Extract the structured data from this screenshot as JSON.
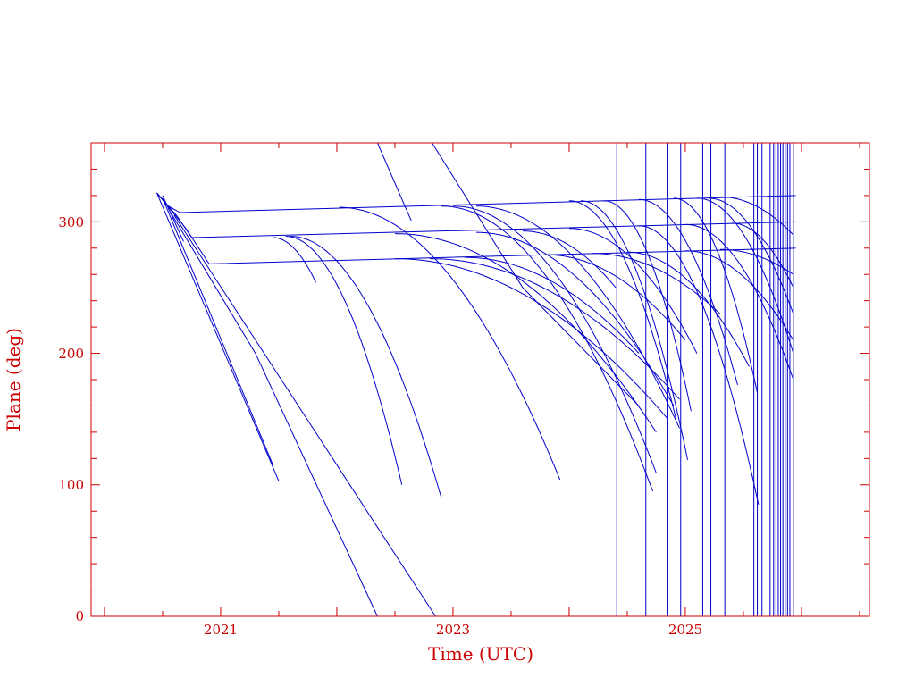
{
  "chart_data": {
    "type": "line",
    "title": "",
    "xlabel": "Time (UTC)",
    "ylabel": "Plane (deg)",
    "xlim": [
      2019.885,
      2026.585
    ],
    "ylim": [
      0,
      360
    ],
    "x_ticks": [
      {
        "value": 2021,
        "label": "2021"
      },
      {
        "value": 2023,
        "label": "2023"
      },
      {
        "value": 2025,
        "label": "2025"
      }
    ],
    "x_minor_step": 0.5,
    "y_ticks": [
      {
        "value": 0,
        "label": "0"
      },
      {
        "value": 100,
        "label": "100"
      },
      {
        "value": 200,
        "label": "200"
      },
      {
        "value": 300,
        "label": "300"
      }
    ],
    "y_minor_step": 20,
    "grid": false,
    "colors": {
      "axis": "#cc0000",
      "series": "#0000cc"
    },
    "trajectories": [
      {
        "shape": "linear",
        "points": [
          [
            2020.45,
            322
          ],
          [
            2020.55,
            312
          ],
          [
            2020.65,
            307
          ],
          [
            2025.95,
            320
          ]
        ]
      },
      {
        "shape": "linear",
        "points": [
          [
            2020.45,
            322
          ],
          [
            2020.62,
            305
          ],
          [
            2020.75,
            288
          ],
          [
            2025.95,
            300
          ]
        ]
      },
      {
        "shape": "linear",
        "points": [
          [
            2020.45,
            322
          ],
          [
            2020.7,
            295
          ],
          [
            2020.9,
            268
          ],
          [
            2025.95,
            280
          ]
        ]
      },
      {
        "shape": "linear",
        "points": [
          [
            2020.45,
            322
          ],
          [
            2021.5,
            103
          ]
        ]
      },
      {
        "shape": "linear",
        "points": [
          [
            2020.5,
            318
          ],
          [
            2021.45,
            115
          ]
        ]
      },
      {
        "shape": "linear",
        "points": [
          [
            2020.5,
            320
          ],
          [
            2020.68,
            285
          ]
        ]
      },
      {
        "shape": "linear",
        "points": [
          [
            2020.55,
            310
          ],
          [
            2021.3,
            200
          ],
          [
            2022.35,
            0
          ]
        ]
      },
      {
        "shape": "linear",
        "points": [
          [
            2020.6,
            305
          ],
          [
            2022.85,
            0
          ]
        ]
      },
      {
        "shape": "linear",
        "points": [
          [
            2022.35,
            360
          ],
          [
            2022.64,
            301
          ]
        ]
      },
      {
        "shape": "linear",
        "points": [
          [
            2022.82,
            360
          ],
          [
            2023.6,
            250
          ],
          [
            2024.6,
            160
          ]
        ]
      },
      {
        "shape": "decay",
        "points": [
          [
            2021.45,
            288
          ],
          [
            2021.82,
            254
          ]
        ]
      },
      {
        "shape": "decay",
        "points": [
          [
            2021.56,
            289
          ],
          [
            2022.56,
            100
          ]
        ]
      },
      {
        "shape": "decay",
        "points": [
          [
            2021.6,
            289
          ],
          [
            2022.9,
            90
          ]
        ]
      },
      {
        "shape": "decay",
        "points": [
          [
            2022.02,
            311
          ],
          [
            2023.92,
            104
          ]
        ]
      },
      {
        "shape": "decay",
        "points": [
          [
            2022.9,
            312
          ],
          [
            2024.72,
            95
          ]
        ]
      },
      {
        "shape": "decay",
        "points": [
          [
            2023.0,
            312
          ],
          [
            2024.75,
            109
          ]
        ]
      },
      {
        "shape": "decay",
        "points": [
          [
            2023.2,
            312
          ],
          [
            2024.95,
            143
          ]
        ]
      },
      {
        "shape": "decay",
        "points": [
          [
            2024.0,
            316
          ],
          [
            2024.92,
            150
          ]
        ]
      },
      {
        "shape": "decay",
        "points": [
          [
            2024.1,
            316
          ],
          [
            2025.02,
            119
          ]
        ]
      },
      {
        "shape": "decay",
        "points": [
          [
            2024.3,
            316
          ],
          [
            2025.05,
            156
          ]
        ]
      },
      {
        "shape": "decay",
        "points": [
          [
            2024.6,
            317
          ],
          [
            2025.45,
            176
          ]
        ]
      },
      {
        "shape": "decay",
        "points": [
          [
            2024.9,
            318
          ],
          [
            2025.62,
            170
          ]
        ]
      },
      {
        "shape": "decay",
        "points": [
          [
            2025.1,
            318
          ],
          [
            2025.93,
            200
          ]
        ]
      },
      {
        "shape": "decay",
        "points": [
          [
            2025.2,
            318
          ],
          [
            2025.93,
            230
          ]
        ]
      },
      {
        "shape": "decay",
        "points": [
          [
            2025.3,
            319
          ],
          [
            2025.93,
            290
          ]
        ]
      },
      {
        "shape": "decay",
        "points": [
          [
            2022.5,
            291
          ],
          [
            2024.75,
            140
          ]
        ]
      },
      {
        "shape": "decay",
        "points": [
          [
            2023.2,
            292
          ],
          [
            2024.9,
            160
          ]
        ]
      },
      {
        "shape": "decay",
        "points": [
          [
            2023.6,
            293
          ],
          [
            2024.4,
            250
          ]
        ]
      },
      {
        "shape": "decay",
        "points": [
          [
            2024.0,
            295
          ],
          [
            2025.1,
            200
          ]
        ]
      },
      {
        "shape": "decay",
        "points": [
          [
            2024.6,
            297
          ],
          [
            2025.63,
            85
          ]
        ]
      },
      {
        "shape": "decay",
        "points": [
          [
            2025.0,
            298
          ],
          [
            2025.93,
            180
          ]
        ]
      },
      {
        "shape": "decay",
        "points": [
          [
            2025.4,
            299
          ],
          [
            2025.93,
            250
          ]
        ]
      },
      {
        "shape": "decay",
        "points": [
          [
            2022.5,
            272
          ],
          [
            2024.85,
            150
          ]
        ]
      },
      {
        "shape": "decay",
        "points": [
          [
            2022.8,
            272
          ],
          [
            2024.95,
            165
          ]
        ]
      },
      {
        "shape": "decay",
        "points": [
          [
            2023.1,
            273
          ],
          [
            2024.6,
            200
          ]
        ]
      },
      {
        "shape": "decay",
        "points": [
          [
            2023.8,
            275
          ],
          [
            2025.0,
            210
          ]
        ]
      },
      {
        "shape": "decay",
        "points": [
          [
            2024.2,
            276
          ],
          [
            2025.3,
            230
          ]
        ]
      },
      {
        "shape": "decay",
        "points": [
          [
            2024.5,
            277
          ],
          [
            2025.55,
            190
          ]
        ]
      },
      {
        "shape": "decay",
        "points": [
          [
            2025.0,
            278
          ],
          [
            2025.93,
            210
          ]
        ]
      },
      {
        "shape": "decay",
        "points": [
          [
            2025.3,
            279
          ],
          [
            2025.93,
            260
          ]
        ]
      }
    ],
    "vertical_lines": [
      2024.41,
      2024.66,
      2024.85,
      2024.96,
      2025.15,
      2025.22,
      2025.34,
      2025.59,
      2025.62,
      2025.66,
      2025.73,
      2025.76,
      2025.78,
      2025.8,
      2025.82,
      2025.84,
      2025.86,
      2025.88,
      2025.9,
      2025.93
    ]
  }
}
